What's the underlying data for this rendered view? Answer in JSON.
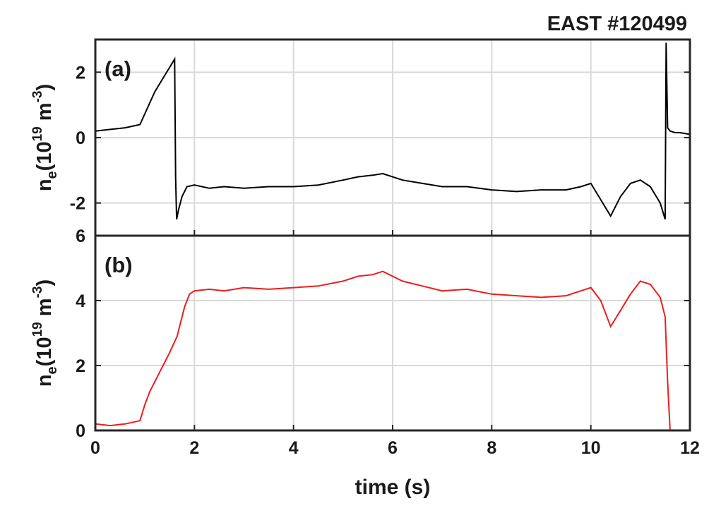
{
  "title": "EAST #120499",
  "xlabel": "time (s)",
  "chart_data": [
    {
      "type": "line",
      "panel_label": "(a)",
      "ylabel": {
        "base": "n",
        "sub": "e",
        "prefix": "(10",
        "exp1": "19",
        "mid": " m",
        "exp2": "-3",
        "suffix": ")"
      },
      "xlim": [
        0,
        12
      ],
      "ylim": [
        -3,
        3
      ],
      "xticks": [
        0,
        2,
        4,
        6,
        8,
        10,
        12
      ],
      "yticks": [
        -2,
        0,
        2
      ],
      "ytick_labels": [
        "-2",
        "0",
        "2"
      ],
      "grid": true,
      "series": [
        {
          "color": "#000000",
          "x": [
            0,
            0.3,
            0.6,
            0.9,
            1.05,
            1.2,
            1.4,
            1.6,
            1.62,
            1.64,
            1.68,
            1.75,
            1.85,
            2.0,
            2.3,
            2.6,
            3.0,
            3.5,
            4.0,
            4.5,
            5.0,
            5.3,
            5.6,
            5.8,
            6.2,
            6.6,
            7.0,
            7.5,
            8.0,
            8.5,
            9.0,
            9.5,
            9.8,
            10.0,
            10.2,
            10.4,
            10.6,
            10.8,
            11.0,
            11.2,
            11.4,
            11.5,
            11.52,
            11.55,
            11.6,
            11.7,
            11.8,
            12.0
          ],
          "y": [
            0.2,
            0.25,
            0.3,
            0.4,
            0.9,
            1.4,
            1.9,
            2.4,
            -1.2,
            -2.5,
            -2.2,
            -1.8,
            -1.5,
            -1.45,
            -1.55,
            -1.5,
            -1.55,
            -1.5,
            -1.5,
            -1.45,
            -1.3,
            -1.2,
            -1.15,
            -1.1,
            -1.3,
            -1.4,
            -1.5,
            -1.5,
            -1.6,
            -1.65,
            -1.6,
            -1.6,
            -1.5,
            -1.4,
            -1.9,
            -2.4,
            -1.8,
            -1.4,
            -1.3,
            -1.5,
            -2.0,
            -2.5,
            2.9,
            0.3,
            0.2,
            0.15,
            0.15,
            0.1
          ]
        }
      ]
    },
    {
      "type": "line",
      "panel_label": "(b)",
      "ylabel": {
        "base": "n",
        "sub": "e",
        "prefix": "(10",
        "exp1": "19",
        "mid": " m",
        "exp2": "-3",
        "suffix": ")"
      },
      "xlim": [
        0,
        12
      ],
      "ylim": [
        0,
        6
      ],
      "xticks": [
        0,
        2,
        4,
        6,
        8,
        10,
        12
      ],
      "xtick_labels": [
        "0",
        "2",
        "4",
        "6",
        "8",
        "10",
        "12"
      ],
      "yticks": [
        0,
        2,
        4,
        6
      ],
      "ytick_labels": [
        "0",
        "2",
        "4",
        "6"
      ],
      "grid": true,
      "series": [
        {
          "color": "#ee1c1c",
          "x": [
            0,
            0.3,
            0.6,
            0.9,
            1.0,
            1.1,
            1.3,
            1.5,
            1.65,
            1.8,
            1.9,
            2.0,
            2.3,
            2.6,
            3.0,
            3.5,
            4.0,
            4.5,
            5.0,
            5.3,
            5.6,
            5.8,
            6.2,
            6.6,
            7.0,
            7.5,
            8.0,
            8.5,
            9.0,
            9.5,
            9.8,
            10.0,
            10.2,
            10.4,
            10.6,
            10.8,
            11.0,
            11.2,
            11.4,
            11.5,
            11.55,
            11.6
          ],
          "y": [
            0.2,
            0.15,
            0.2,
            0.3,
            0.8,
            1.2,
            1.8,
            2.4,
            2.9,
            3.8,
            4.2,
            4.3,
            4.35,
            4.3,
            4.4,
            4.35,
            4.4,
            4.45,
            4.6,
            4.75,
            4.8,
            4.9,
            4.6,
            4.45,
            4.3,
            4.35,
            4.2,
            4.15,
            4.1,
            4.15,
            4.3,
            4.4,
            4.0,
            3.2,
            3.7,
            4.2,
            4.6,
            4.5,
            4.1,
            3.5,
            1.5,
            0.0
          ]
        }
      ]
    }
  ]
}
